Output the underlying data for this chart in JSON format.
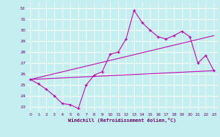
{
  "xlabel": "Windchill (Refroidissement éolien,°C)",
  "background_color": "#c5eef0",
  "grid_color": "#ffffff",
  "line_color": "#bb00aa",
  "xlim": [
    -0.5,
    23.5
  ],
  "ylim": [
    22.5,
    32.5
  ],
  "xticks": [
    0,
    1,
    2,
    3,
    4,
    5,
    6,
    7,
    8,
    9,
    10,
    11,
    12,
    13,
    14,
    15,
    16,
    17,
    18,
    19,
    20,
    21,
    22,
    23
  ],
  "yticks": [
    23,
    24,
    25,
    26,
    27,
    28,
    29,
    30,
    31,
    32
  ],
  "line1_x": [
    0,
    1,
    2,
    3,
    4,
    5,
    6,
    7,
    8,
    9,
    10,
    11,
    12,
    13,
    14,
    15,
    16,
    17,
    18,
    19,
    20,
    21,
    22,
    23
  ],
  "line1_y": [
    25.5,
    25.1,
    24.6,
    24.0,
    23.3,
    23.2,
    22.85,
    25.0,
    25.9,
    26.2,
    27.8,
    28.0,
    29.2,
    31.8,
    30.7,
    30.0,
    29.4,
    29.2,
    29.5,
    29.9,
    29.4,
    27.0,
    27.7,
    26.3
  ],
  "line2_x": [
    0,
    23
  ],
  "line2_y": [
    25.5,
    26.3
  ],
  "line3_x": [
    0,
    23
  ],
  "line3_y": [
    25.5,
    29.5
  ]
}
